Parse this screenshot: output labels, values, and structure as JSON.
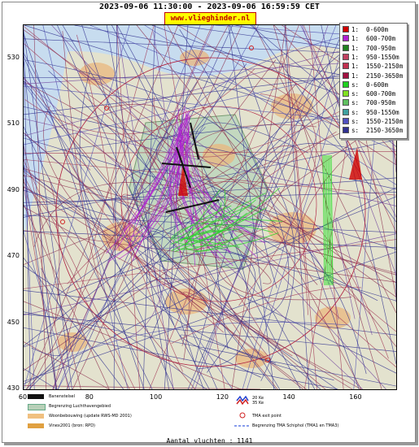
{
  "header": {
    "title": "2023-09-06 11:30:00 - 2023-09-06 16:59:59 CET",
    "brand": "www.vlieghinder.nl"
  },
  "map": {
    "y_ticks": [
      "530",
      "510",
      "490",
      "470",
      "450",
      "430"
    ],
    "x_ticks": [
      "60",
      "80",
      "100",
      "120",
      "140",
      "160"
    ],
    "y_range": [
      430,
      540
    ],
    "x_range": [
      60,
      172
    ],
    "background_color": "#c7dcef",
    "land_color": "#e8e3c8",
    "urban_color": "#e9b77e"
  },
  "legend": {
    "items": [
      {
        "label": "1:  0-600m",
        "color": "#d00000"
      },
      {
        "label": "1:  600-700m",
        "color": "#b020d0"
      },
      {
        "label": "1:  700-950m",
        "color": "#208020"
      },
      {
        "label": "1:  950-1550m",
        "color": "#c04060"
      },
      {
        "label": "1:  1550-2150m",
        "color": "#c03050"
      },
      {
        "label": "1:  2150-3650m",
        "color": "#a01040"
      },
      {
        "label": "s:  0-600m",
        "color": "#20d020"
      },
      {
        "label": "s:  600-700m",
        "color": "#80e020"
      },
      {
        "label": "s:  700-950m",
        "color": "#60c060"
      },
      {
        "label": "s:  950-1550m",
        "color": "#40a0a0"
      },
      {
        "label": "s:  1550-2150m",
        "color": "#5050c0"
      },
      {
        "label": "s:  2150-3650m",
        "color": "#303090"
      }
    ]
  },
  "map_legend": {
    "items": [
      {
        "label": "Banenstelsel",
        "swatch": "#111111"
      },
      {
        "label": "Begrenzing Luchthavengebied",
        "swatch": "#b8d0b8"
      },
      {
        "label": "Woonbebouwing (update RWS-MD 2001)",
        "swatch": "#f0c080"
      },
      {
        "label": "Vinex2001 (bron: RPD)",
        "swatch": "#e0a040"
      }
    ],
    "right_items": [
      {
        "label": "20 Ke"
      },
      {
        "label": "35 Ke"
      },
      {
        "label": "TMA exit point"
      },
      {
        "label": "Begrenzing TMA Schiphol  (TMA1 en TMA3)"
      }
    ]
  },
  "footer": {
    "count_text": "Aantal vluchten : 1141"
  }
}
